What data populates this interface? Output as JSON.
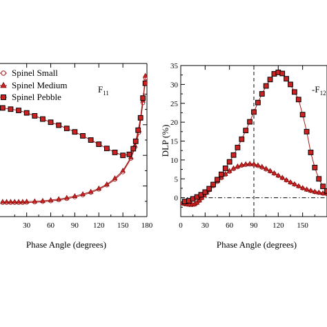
{
  "chart_data": [
    {
      "type": "line",
      "xlabel": "Phase Angle (degrees)",
      "ylabel": "",
      "xlim": [
        -5,
        180
      ],
      "x_ticks": [
        30,
        60,
        90,
        120,
        150,
        180
      ],
      "annotation": {
        "main": "F",
        "sub": "11"
      },
      "legend": {
        "placement": "top-left",
        "entries": [
          "Spinel Small",
          "Spinel Medium",
          "Spinel Pebble"
        ]
      },
      "series": [
        {
          "name": "Spinel Small",
          "marker": "circle",
          "x": [
            0,
            5,
            10,
            15,
            20,
            25,
            30,
            40,
            50,
            60,
            70,
            80,
            90,
            100,
            110,
            120,
            130,
            140,
            150,
            160,
            165,
            170,
            175,
            178
          ],
          "y": [
            0.56,
            0.56,
            0.56,
            0.56,
            0.56,
            0.56,
            0.57,
            0.58,
            0.6,
            0.63,
            0.67,
            0.72,
            0.79,
            0.87,
            0.97,
            1.1,
            1.27,
            1.5,
            1.8,
            2.35,
            2.8,
            3.4,
            4.6,
            5.6
          ]
        },
        {
          "name": "Spinel Medium",
          "marker": "triangle",
          "x": [
            0,
            5,
            10,
            15,
            20,
            25,
            30,
            40,
            50,
            60,
            70,
            80,
            90,
            100,
            110,
            120,
            130,
            140,
            150,
            160,
            165,
            170,
            175,
            178
          ],
          "y": [
            0.6,
            0.6,
            0.6,
            0.6,
            0.6,
            0.6,
            0.61,
            0.62,
            0.64,
            0.67,
            0.71,
            0.76,
            0.83,
            0.91,
            1.01,
            1.14,
            1.31,
            1.55,
            1.86,
            2.4,
            2.88,
            3.5,
            4.7,
            5.7
          ]
        },
        {
          "name": "Spinel Pebble",
          "marker": "square",
          "x": [
            0,
            10,
            20,
            30,
            40,
            50,
            60,
            70,
            80,
            90,
            100,
            110,
            120,
            130,
            140,
            150,
            158,
            163,
            166,
            169,
            172,
            175,
            178
          ],
          "y": [
            4.4,
            4.35,
            4.3,
            4.2,
            4.08,
            3.95,
            3.82,
            3.7,
            3.57,
            3.43,
            3.27,
            3.1,
            2.93,
            2.76,
            2.6,
            2.48,
            2.52,
            2.75,
            3.05,
            3.5,
            4.0,
            4.8,
            5.4
          ]
        }
      ]
    },
    {
      "type": "line",
      "xlabel": "Phase Angle (degrees)",
      "ylabel": "DLP (%)",
      "xlim": [
        0,
        180
      ],
      "ylim": [
        -5,
        35
      ],
      "x_ticks": [
        0,
        30,
        60,
        90,
        120,
        150
      ],
      "y_ticks": [
        0,
        5,
        10,
        15,
        20,
        25,
        30,
        35
      ],
      "annotation": {
        "main": "-F",
        "sub": "12"
      },
      "vertical_line_x": 90,
      "horizontal_line_y": 0,
      "series": [
        {
          "name": "Spinel Small",
          "marker": "circle",
          "x": [
            2,
            5,
            8,
            11,
            14,
            17,
            20,
            23,
            26,
            29,
            32,
            35,
            40,
            45,
            50,
            55,
            60,
            65,
            70,
            75,
            80,
            85,
            90,
            95,
            100,
            105,
            110,
            115,
            120,
            125,
            130,
            135,
            140,
            145,
            150,
            155,
            160,
            165,
            170,
            175,
            180
          ],
          "y": [
            -1.5,
            -1.7,
            -1.8,
            -1.9,
            -1.9,
            -1.8,
            -1.4,
            -0.8,
            -0.1,
            0.6,
            1.3,
            2.0,
            3.1,
            4.2,
            5.2,
            6.1,
            6.9,
            7.6,
            8.1,
            8.5,
            8.7,
            8.8,
            8.7,
            8.4,
            8.0,
            7.5,
            7.0,
            6.4,
            5.8,
            5.2,
            4.6,
            4.0,
            3.5,
            3.0,
            2.5,
            2.1,
            1.8,
            1.5,
            1.3,
            1.1,
            1.0
          ]
        },
        {
          "name": "Spinel Medium",
          "marker": "triangle",
          "x": [
            2,
            5,
            8,
            11,
            14,
            17,
            20,
            23,
            26,
            29,
            32,
            35,
            40,
            45,
            50,
            55,
            60,
            65,
            70,
            75,
            80,
            85,
            90,
            95,
            100,
            105,
            110,
            115,
            120,
            125,
            130,
            135,
            140,
            145,
            150,
            155,
            160,
            165,
            170,
            175,
            180
          ],
          "y": [
            -1.4,
            -1.6,
            -1.7,
            -1.8,
            -1.8,
            -1.7,
            -1.3,
            -0.7,
            0.0,
            0.7,
            1.4,
            2.1,
            3.3,
            4.4,
            5.4,
            6.3,
            7.1,
            7.8,
            8.3,
            8.7,
            8.9,
            9.0,
            8.9,
            8.6,
            8.2,
            7.7,
            7.1,
            6.5,
            5.9,
            5.3,
            4.7,
            4.1,
            3.6,
            3.1,
            2.6,
            2.2,
            1.9,
            1.6,
            1.4,
            1.2,
            1.1
          ]
        },
        {
          "name": "Spinel Pebble",
          "marker": "square",
          "x": [
            5,
            10,
            15,
            20,
            25,
            30,
            35,
            40,
            45,
            50,
            55,
            60,
            65,
            70,
            75,
            80,
            85,
            90,
            95,
            100,
            105,
            110,
            115,
            120,
            125,
            130,
            135,
            140,
            145,
            150,
            155,
            160,
            165,
            170,
            175,
            180
          ],
          "y": [
            -1.0,
            -0.8,
            -0.3,
            0.2,
            0.8,
            1.5,
            2.4,
            3.5,
            4.8,
            6.2,
            7.8,
            9.5,
            11.3,
            13.3,
            15.5,
            17.8,
            20.1,
            22.7,
            25.2,
            27.5,
            29.6,
            31.3,
            32.8,
            33.2,
            32.9,
            31.5,
            30.0,
            28.0,
            26.0,
            22.0,
            17.5,
            12.0,
            8.0,
            5.0,
            3.0,
            1.8
          ]
        }
      ]
    }
  ]
}
